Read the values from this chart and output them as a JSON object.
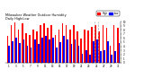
{
  "title": "Milwaukee Weather Outdoor Humidity",
  "subtitle": "Daily High/Low",
  "high_color": "#ff0000",
  "low_color": "#0000ff",
  "background_color": "#ffffff",
  "ylim": [
    0,
    100
  ],
  "high_values": [
    65,
    92,
    98,
    82,
    96,
    72,
    68,
    82,
    77,
    92,
    97,
    86,
    91,
    67,
    82,
    96,
    91,
    81,
    91,
    76,
    58,
    82,
    78,
    87,
    91,
    76,
    91,
    86,
    42,
    91,
    86
  ],
  "low_values": [
    42,
    52,
    62,
    47,
    57,
    42,
    36,
    57,
    46,
    62,
    66,
    56,
    61,
    36,
    51,
    66,
    56,
    46,
    56,
    41,
    22,
    30,
    20,
    52,
    56,
    28,
    30,
    52,
    18,
    28,
    48
  ],
  "x_labels": [
    "1",
    "",
    "3",
    "",
    "5",
    "",
    "7",
    "",
    "9",
    "",
    "11",
    "",
    "13",
    "",
    "15",
    "",
    "17",
    "",
    "19",
    "",
    "21",
    "",
    "23",
    "",
    "25",
    "",
    "27",
    "",
    "29",
    "",
    "31"
  ],
  "dashed_vlines_x": [
    23.5,
    24.5
  ],
  "bar_width": 0.42,
  "legend_high": "High",
  "legend_low": "Low",
  "yticks": [
    0,
    10,
    20,
    30,
    40,
    50,
    60,
    70,
    80,
    90,
    100
  ],
  "ytick_labels": [
    "0",
    "1",
    "2",
    "3",
    "4",
    "5",
    "6",
    "7",
    "8",
    "9",
    "10"
  ]
}
